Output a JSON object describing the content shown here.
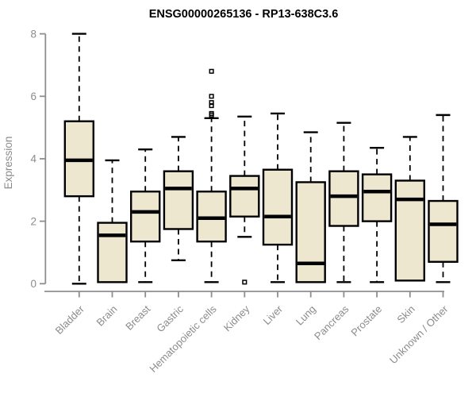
{
  "page": {
    "background": "#ffffff"
  },
  "chart_data": {
    "type": "boxplot",
    "title": "ENSG00000265136 - RP13-638C3.6",
    "xlabel": "",
    "ylabel": "Expression",
    "ylim": [
      0,
      8
    ],
    "yticks": [
      "0",
      "2",
      "4",
      "6",
      "8"
    ],
    "grid": false,
    "legend": "none",
    "categories": [
      "Bladder",
      "Brain",
      "Breast",
      "Gastric",
      "Hematopoietic cells",
      "Kidney",
      "Liver",
      "Lung",
      "Pancreas",
      "Prostate",
      "Skin",
      "Unknown / Other"
    ],
    "series": [
      {
        "name": "Bladder",
        "whisker_low": 0.0,
        "q1": 2.8,
        "median": 3.95,
        "q3": 5.2,
        "whisker_high": 8.0,
        "outliers": []
      },
      {
        "name": "Brain",
        "whisker_low": 0.05,
        "q1": 0.05,
        "median": 1.55,
        "q3": 1.95,
        "whisker_high": 3.95,
        "outliers": []
      },
      {
        "name": "Breast",
        "whisker_low": 0.05,
        "q1": 1.35,
        "median": 2.3,
        "q3": 2.95,
        "whisker_high": 4.3,
        "outliers": []
      },
      {
        "name": "Gastric",
        "whisker_low": 0.75,
        "q1": 1.75,
        "median": 3.05,
        "q3": 3.6,
        "whisker_high": 4.7,
        "outliers": []
      },
      {
        "name": "Hematopoietic cells",
        "whisker_low": 0.05,
        "q1": 1.35,
        "median": 2.1,
        "q3": 2.95,
        "whisker_high": 5.3,
        "outliers": [
          5.4,
          5.45,
          5.7,
          5.8,
          6.0,
          6.8
        ]
      },
      {
        "name": "Kidney",
        "whisker_low": 1.5,
        "q1": 2.15,
        "median": 3.05,
        "q3": 3.45,
        "whisker_high": 5.35,
        "outliers": [
          0.05
        ]
      },
      {
        "name": "Liver",
        "whisker_low": 0.05,
        "q1": 1.25,
        "median": 2.15,
        "q3": 3.65,
        "whisker_high": 5.45,
        "outliers": []
      },
      {
        "name": "Lung",
        "whisker_low": 0.05,
        "q1": 0.05,
        "median": 0.65,
        "q3": 3.25,
        "whisker_high": 4.85,
        "outliers": []
      },
      {
        "name": "Pancreas",
        "whisker_low": 0.05,
        "q1": 1.85,
        "median": 2.8,
        "q3": 3.6,
        "whisker_high": 5.15,
        "outliers": []
      },
      {
        "name": "Prostate",
        "whisker_low": 0.05,
        "q1": 2.0,
        "median": 2.95,
        "q3": 3.5,
        "whisker_high": 4.35,
        "outliers": []
      },
      {
        "name": "Skin",
        "whisker_low": 0.1,
        "q1": 0.1,
        "median": 2.7,
        "q3": 3.3,
        "whisker_high": 4.7,
        "outliers": []
      },
      {
        "name": "Unknown / Other",
        "whisker_low": 0.05,
        "q1": 0.7,
        "median": 1.9,
        "q3": 2.65,
        "whisker_high": 5.4,
        "outliers": []
      }
    ],
    "colors": {
      "box_fill": "#ede7cf",
      "box_stroke": "#000000",
      "median": "#000000",
      "whisker": "#000000",
      "axis": "#8e8e8e",
      "tick_label": "#8b8b8b",
      "title": "#000000"
    }
  }
}
